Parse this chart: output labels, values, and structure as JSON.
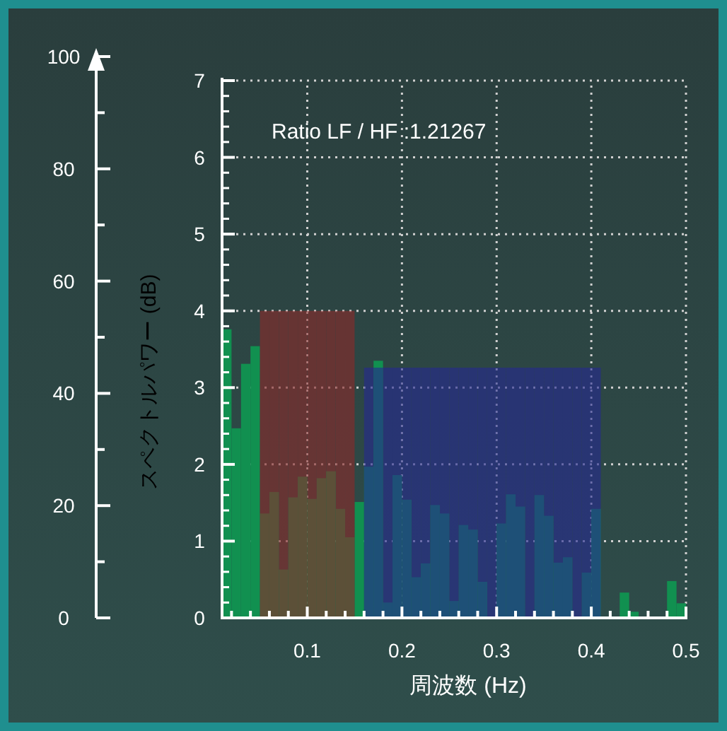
{
  "chart_data": {
    "type": "histogram",
    "xlabel": "周波数 (Hz)",
    "ylabel": "スペクトルパワー (dB)",
    "annotations": [
      "Ratio LF / HF :1.21267"
    ],
    "xlim": [
      0.01,
      0.5
    ],
    "ylim": [
      0,
      7
    ],
    "y2lim": [
      0,
      100
    ],
    "xticks": [
      {
        "value": 0.02,
        "label": null
      },
      {
        "value": 0.04,
        "label": null
      },
      {
        "value": 0.06,
        "label": null
      },
      {
        "value": 0.08,
        "label": null
      },
      0.1,
      {
        "value": 0.12,
        "label": null
      },
      {
        "value": 0.14,
        "label": null
      },
      {
        "value": 0.16,
        "label": null
      },
      {
        "value": 0.18,
        "label": null
      },
      0.2,
      {
        "value": 0.22,
        "label": null
      },
      {
        "value": 0.24,
        "label": null
      },
      {
        "value": 0.26,
        "label": null
      },
      {
        "value": 0.28,
        "label": null
      },
      0.3,
      {
        "value": 0.32,
        "label": null
      },
      {
        "value": 0.34,
        "label": null
      },
      {
        "value": 0.36,
        "label": null
      },
      {
        "value": 0.38,
        "label": null
      },
      0.4,
      {
        "value": 0.42,
        "label": null
      },
      {
        "value": 0.44,
        "label": null
      },
      {
        "value": 0.46,
        "label": null
      },
      {
        "value": 0.48,
        "label": null
      },
      0.5
    ],
    "yticks": [
      0,
      1,
      2,
      3,
      4,
      5,
      6,
      7
    ],
    "y2ticks": [
      0,
      20,
      40,
      60,
      80,
      100
    ],
    "grid": true,
    "bins": [
      0.01,
      0.02,
      0.03,
      0.04,
      0.05,
      0.06,
      0.07,
      0.08,
      0.09,
      0.1,
      0.11,
      0.12,
      0.13,
      0.14,
      0.15,
      0.16,
      0.17,
      0.18,
      0.19,
      0.2,
      0.21,
      0.22,
      0.23,
      0.24,
      0.25,
      0.26,
      0.27,
      0.28,
      0.29,
      0.3,
      0.31,
      0.32,
      0.33,
      0.34,
      0.35,
      0.36,
      0.37,
      0.38,
      0.39,
      0.4,
      0.41,
      0.42,
      0.43,
      0.44,
      0.45,
      0.46,
      0.47,
      0.48,
      0.49,
      0.5
    ],
    "series": [
      {
        "color": "#119050",
        "values": [
          3.76,
          2.47,
          3.31,
          3.54,
          1.36,
          1.64,
          0.63,
          1.57,
          1.84,
          1.55,
          1.82,
          1.91,
          1.42,
          1.05,
          1.51,
          1.97,
          3.35,
          0.2,
          1.86,
          1.54,
          0.53,
          0.71,
          1.47,
          1.36,
          0.22,
          1.21,
          1.15,
          0.47,
          0,
          1.23,
          1.61,
          1.45,
          0,
          1.6,
          1.33,
          0.72,
          0.79,
          0,
          0.59,
          1.42,
          0,
          null,
          0.33,
          0.08,
          0,
          0,
          0,
          0.48,
          0.19
        ]
      },
      {
        "color": "#8a2a2a",
        "values": [
          null,
          null,
          null,
          null,
          4.0,
          4.0,
          4.0,
          4.0,
          4.0,
          4.0,
          4.0,
          4.0,
          4.0,
          4.0,
          null,
          null,
          null,
          null,
          null,
          null,
          null,
          null,
          null,
          null,
          null,
          null,
          null,
          null,
          null,
          null,
          null,
          null,
          null,
          null,
          null,
          null,
          null,
          null,
          null,
          null,
          null,
          null,
          null,
          null,
          null,
          null,
          null,
          null,
          null
        ]
      },
      {
        "color": "#262a90",
        "values": [
          null,
          null,
          null,
          null,
          null,
          null,
          null,
          null,
          null,
          null,
          null,
          null,
          null,
          null,
          null,
          3.26,
          3.26,
          3.26,
          3.26,
          3.26,
          3.26,
          3.26,
          3.26,
          3.26,
          3.26,
          3.26,
          3.26,
          3.26,
          3.26,
          3.26,
          3.26,
          3.26,
          3.26,
          3.26,
          3.26,
          3.26,
          3.26,
          3.26,
          3.26,
          3.26,
          null,
          null,
          null,
          null,
          null,
          null,
          null,
          null,
          null
        ]
      }
    ]
  }
}
